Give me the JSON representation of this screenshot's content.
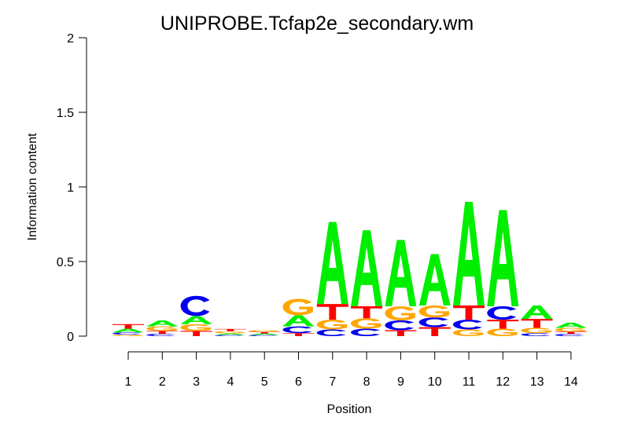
{
  "chart_data": {
    "type": "sequence-logo",
    "title": "UNIPROBE.Tcfap2e_secondary.wm",
    "xlabel": "Position",
    "ylabel": "Information content",
    "ylim": [
      0,
      2
    ],
    "y_ticks": [
      "0",
      "0.5",
      "1",
      "1.5",
      "2"
    ],
    "x_ticks": [
      "1",
      "2",
      "3",
      "4",
      "5",
      "6",
      "7",
      "8",
      "9",
      "10",
      "11",
      "12",
      "13",
      "14"
    ],
    "letter_colors": {
      "A": "#00ee00",
      "C": "#0000ee",
      "G": "#ffa500",
      "T": "#ff0000"
    },
    "positions": [
      {
        "position": "1",
        "letters": [
          {
            "l": "G",
            "h": 0.01
          },
          {
            "l": "C",
            "h": 0.015
          },
          {
            "l": "A",
            "h": 0.025
          },
          {
            "l": "T",
            "h": 0.03
          }
        ]
      },
      {
        "position": "2",
        "letters": [
          {
            "l": "C",
            "h": 0.015
          },
          {
            "l": "T",
            "h": 0.02
          },
          {
            "l": "G",
            "h": 0.03
          },
          {
            "l": "A",
            "h": 0.04
          }
        ]
      },
      {
        "position": "3",
        "letters": [
          {
            "l": "T",
            "h": 0.035
          },
          {
            "l": "G",
            "h": 0.045
          },
          {
            "l": "A",
            "h": 0.055
          },
          {
            "l": "C",
            "h": 0.135
          }
        ]
      },
      {
        "position": "4",
        "letters": [
          {
            "l": "C",
            "h": 0.008
          },
          {
            "l": "A",
            "h": 0.01
          },
          {
            "l": "G",
            "h": 0.015
          },
          {
            "l": "T",
            "h": 0.015
          }
        ]
      },
      {
        "position": "5",
        "letters": [
          {
            "l": "C",
            "h": 0.008
          },
          {
            "l": "A",
            "h": 0.01
          },
          {
            "l": "T",
            "h": 0.01
          },
          {
            "l": "G",
            "h": 0.012
          }
        ]
      },
      {
        "position": "6",
        "letters": [
          {
            "l": "T",
            "h": 0.02
          },
          {
            "l": "C",
            "h": 0.045
          },
          {
            "l": "A",
            "h": 0.075
          },
          {
            "l": "G",
            "h": 0.11
          }
        ]
      },
      {
        "position": "7",
        "letters": [
          {
            "l": "C",
            "h": 0.045
          },
          {
            "l": "G",
            "h": 0.065
          },
          {
            "l": "T",
            "h": 0.105
          },
          {
            "l": "A",
            "h": 0.55
          }
        ]
      },
      {
        "position": "8",
        "letters": [
          {
            "l": "C",
            "h": 0.05
          },
          {
            "l": "G",
            "h": 0.07
          },
          {
            "l": "T",
            "h": 0.08
          },
          {
            "l": "A",
            "h": 0.51
          }
        ]
      },
      {
        "position": "9",
        "letters": [
          {
            "l": "T",
            "h": 0.04
          },
          {
            "l": "C",
            "h": 0.065
          },
          {
            "l": "G",
            "h": 0.095
          },
          {
            "l": "A",
            "h": 0.445
          }
        ]
      },
      {
        "position": "10",
        "letters": [
          {
            "l": "T",
            "h": 0.06
          },
          {
            "l": "C",
            "h": 0.065
          },
          {
            "l": "G",
            "h": 0.08
          },
          {
            "l": "A",
            "h": 0.345
          }
        ]
      },
      {
        "position": "11",
        "letters": [
          {
            "l": "G",
            "h": 0.045
          },
          {
            "l": "C",
            "h": 0.065
          },
          {
            "l": "T",
            "h": 0.095
          },
          {
            "l": "A",
            "h": 0.695
          }
        ]
      },
      {
        "position": "12",
        "letters": [
          {
            "l": "G",
            "h": 0.05
          },
          {
            "l": "T",
            "h": 0.06
          },
          {
            "l": "C",
            "h": 0.09
          },
          {
            "l": "A",
            "h": 0.645
          }
        ]
      },
      {
        "position": "13",
        "letters": [
          {
            "l": "C",
            "h": 0.02
          },
          {
            "l": "G",
            "h": 0.035
          },
          {
            "l": "T",
            "h": 0.06
          },
          {
            "l": "A",
            "h": 0.09
          }
        ]
      },
      {
        "position": "14",
        "letters": [
          {
            "l": "C",
            "h": 0.015
          },
          {
            "l": "T",
            "h": 0.015
          },
          {
            "l": "G",
            "h": 0.025
          },
          {
            "l": "A",
            "h": 0.035
          }
        ]
      }
    ]
  }
}
